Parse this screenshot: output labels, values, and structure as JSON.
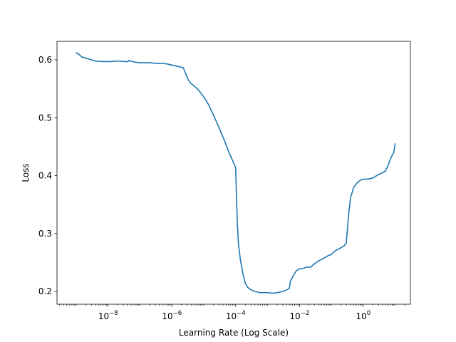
{
  "chart_data": {
    "type": "line",
    "title": "",
    "xlabel": "Learning Rate (Log Scale)",
    "ylabel": "Loss",
    "xscale": "log",
    "xlim": [
      2.5e-10,
      30
    ],
    "ylim": [
      0.178,
      0.632
    ],
    "grid": false,
    "x_ticks": [
      {
        "value": 1e-08,
        "base": "10",
        "exp": "−8"
      },
      {
        "value": 1e-06,
        "base": "10",
        "exp": "−6"
      },
      {
        "value": 0.0001,
        "base": "10",
        "exp": "−4"
      },
      {
        "value": 0.01,
        "base": "10",
        "exp": "−2"
      },
      {
        "value": 1,
        "base": "10",
        "exp": "0"
      }
    ],
    "y_ticks": [
      {
        "value": 0.2,
        "label": "0.2"
      },
      {
        "value": 0.3,
        "label": "0.3"
      },
      {
        "value": 0.4,
        "label": "0.4"
      },
      {
        "value": 0.5,
        "label": "0.5"
      },
      {
        "value": 0.6,
        "label": "0.6"
      }
    ],
    "series": [
      {
        "color": "#1f77b4",
        "points": [
          [
            1e-09,
            0.612
          ],
          [
            1.2e-09,
            0.61
          ],
          [
            1.5e-09,
            0.605
          ],
          [
            2e-09,
            0.603
          ],
          [
            3e-09,
            0.6
          ],
          [
            4e-09,
            0.598
          ],
          [
            7e-09,
            0.597
          ],
          [
            1.2e-08,
            0.597
          ],
          [
            2e-08,
            0.598
          ],
          [
            3.5e-08,
            0.597
          ],
          [
            4.2e-08,
            0.597
          ],
          [
            4.4e-08,
            0.599
          ],
          [
            5e-08,
            0.598
          ],
          [
            7e-08,
            0.596
          ],
          [
            1e-07,
            0.595
          ],
          [
            2e-07,
            0.595
          ],
          [
            3e-07,
            0.594
          ],
          [
            5e-07,
            0.594
          ],
          [
            7e-07,
            0.593
          ],
          [
            1e-06,
            0.591
          ],
          [
            1.5e-06,
            0.589
          ],
          [
            2.3e-06,
            0.586
          ],
          [
            2.6e-06,
            0.578
          ],
          [
            3.3e-06,
            0.565
          ],
          [
            4e-06,
            0.559
          ],
          [
            5e-06,
            0.555
          ],
          [
            7e-06,
            0.547
          ],
          [
            1e-05,
            0.536
          ],
          [
            1.4e-05,
            0.523
          ],
          [
            2e-05,
            0.505
          ],
          [
            3e-05,
            0.483
          ],
          [
            4.5e-05,
            0.46
          ],
          [
            6.5e-05,
            0.437
          ],
          [
            9e-05,
            0.42
          ],
          [
            0.0001,
            0.413
          ],
          [
            0.000105,
            0.37
          ],
          [
            0.000112,
            0.32
          ],
          [
            0.000122,
            0.283
          ],
          [
            0.00014,
            0.255
          ],
          [
            0.00017,
            0.23
          ],
          [
            0.0002,
            0.214
          ],
          [
            0.00024,
            0.207
          ],
          [
            0.0003,
            0.203
          ],
          [
            0.0004,
            0.2
          ],
          [
            0.0006,
            0.198
          ],
          [
            0.001,
            0.198
          ],
          [
            0.0015,
            0.197
          ],
          [
            0.002,
            0.198
          ],
          [
            0.003,
            0.2
          ],
          [
            0.004,
            0.203
          ],
          [
            0.0048,
            0.205
          ],
          [
            0.0052,
            0.218
          ],
          [
            0.0065,
            0.228
          ],
          [
            0.008,
            0.236
          ],
          [
            0.01,
            0.239
          ],
          [
            0.013,
            0.24
          ],
          [
            0.017,
            0.242
          ],
          [
            0.022,
            0.242
          ],
          [
            0.03,
            0.248
          ],
          [
            0.04,
            0.253
          ],
          [
            0.06,
            0.258
          ],
          [
            0.08,
            0.262
          ],
          [
            0.1,
            0.264
          ],
          [
            0.13,
            0.27
          ],
          [
            0.18,
            0.274
          ],
          [
            0.25,
            0.279
          ],
          [
            0.29,
            0.283
          ],
          [
            0.31,
            0.3
          ],
          [
            0.35,
            0.335
          ],
          [
            0.4,
            0.362
          ],
          [
            0.5,
            0.38
          ],
          [
            0.65,
            0.388
          ],
          [
            0.8,
            0.392
          ],
          [
            1,
            0.394
          ],
          [
            1.4,
            0.394
          ],
          [
            2,
            0.396
          ],
          [
            3,
            0.402
          ],
          [
            4,
            0.405
          ],
          [
            5,
            0.408
          ],
          [
            6,
            0.418
          ],
          [
            7,
            0.428
          ],
          [
            8,
            0.435
          ],
          [
            9,
            0.44
          ],
          [
            10,
            0.455
          ]
        ]
      }
    ]
  }
}
